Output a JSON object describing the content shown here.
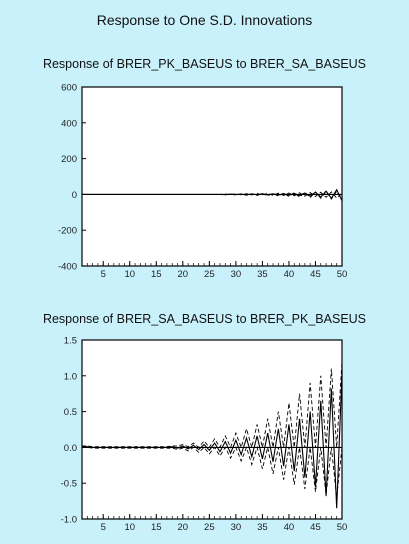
{
  "title": "Response to One S.D. Innovations",
  "chart_data": [
    {
      "type": "line",
      "title": "Response of BRER_PK_BASEUS to BRER_SA_BASEUS",
      "xlabel": "",
      "ylabel": "",
      "xlim": [
        1,
        50
      ],
      "ylim": [
        -400,
        600
      ],
      "x_ticks": [
        "5",
        "10",
        "15",
        "20",
        "25",
        "30",
        "35",
        "40",
        "45",
        "50"
      ],
      "y_ticks": [
        "600",
        "400",
        "200",
        "0",
        "-200",
        "-400"
      ],
      "series": [
        {
          "style": "solid",
          "x": [
            1,
            2,
            3,
            4,
            5,
            6,
            7,
            8,
            9,
            10,
            11,
            12,
            13,
            14,
            15,
            16,
            17,
            18,
            19,
            20,
            21,
            22,
            23,
            24,
            25,
            26,
            27,
            28,
            29,
            30,
            31,
            32,
            33,
            34,
            35,
            36,
            37,
            38,
            39,
            40,
            41,
            42,
            43,
            44,
            45,
            46,
            47,
            48,
            49,
            50
          ],
          "values": [
            0,
            0,
            0,
            0,
            0,
            0,
            0,
            0,
            0,
            0,
            0,
            0,
            0,
            0,
            0,
            0,
            0,
            0,
            0,
            0,
            0,
            0,
            0,
            0,
            0,
            0,
            0,
            -1,
            1,
            -1,
            1,
            -2,
            2,
            -2,
            3,
            -3,
            3,
            -4,
            4,
            -5,
            6,
            -7,
            8,
            -10,
            12,
            -15,
            18,
            -22,
            26,
            -35
          ]
        },
        {
          "style": "dashed",
          "x": [
            1,
            2,
            3,
            4,
            5,
            6,
            7,
            8,
            9,
            10,
            11,
            12,
            13,
            14,
            15,
            16,
            17,
            18,
            19,
            20,
            21,
            22,
            23,
            24,
            25,
            26,
            27,
            28,
            29,
            30,
            31,
            32,
            33,
            34,
            35,
            36,
            37,
            38,
            39,
            40,
            41,
            42,
            43,
            44,
            45,
            46,
            47,
            48,
            49,
            50
          ],
          "values": [
            0,
            0,
            0,
            0,
            0,
            0,
            0,
            0,
            0,
            0,
            0,
            0,
            0,
            0,
            0,
            0,
            0,
            0,
            0,
            0,
            0,
            0,
            0,
            0,
            0,
            0,
            0,
            -3,
            2,
            -4,
            3,
            -5,
            4,
            -6,
            5,
            -8,
            6,
            -10,
            8,
            -12,
            10,
            -15,
            12,
            -18,
            14,
            -22,
            16,
            -26,
            18,
            -32
          ]
        },
        {
          "style": "dashed",
          "x": [
            1,
            2,
            3,
            4,
            5,
            6,
            7,
            8,
            9,
            10,
            11,
            12,
            13,
            14,
            15,
            16,
            17,
            18,
            19,
            20,
            21,
            22,
            23,
            24,
            25,
            26,
            27,
            28,
            29,
            30,
            31,
            32,
            33,
            34,
            35,
            36,
            37,
            38,
            39,
            40,
            41,
            42,
            43,
            44,
            45,
            46,
            47,
            48,
            49,
            50
          ],
          "values": [
            0,
            0,
            0,
            0,
            0,
            0,
            0,
            0,
            0,
            0,
            0,
            0,
            0,
            0,
            0,
            0,
            0,
            0,
            0,
            0,
            0,
            0,
            0,
            0,
            0,
            0,
            0,
            2,
            -1,
            3,
            -2,
            4,
            -3,
            5,
            -4,
            6,
            -5,
            7,
            -6,
            8,
            -8,
            9,
            -10,
            10,
            -12,
            12,
            -16,
            14,
            -20,
            6
          ]
        }
      ]
    },
    {
      "type": "line",
      "title": "Response of BRER_SA_BASEUS to BRER_PK_BASEUS",
      "xlabel": "",
      "ylabel": "",
      "xlim": [
        1,
        50
      ],
      "ylim": [
        -1.0,
        1.5
      ],
      "x_ticks": [
        "5",
        "10",
        "15",
        "20",
        "25",
        "30",
        "35",
        "40",
        "45",
        "50"
      ],
      "y_ticks": [
        "1.5",
        "1.0",
        "0.5",
        "0.0",
        "-0.5",
        "-1.0"
      ],
      "series": [
        {
          "style": "solid",
          "x": [
            1,
            2,
            3,
            4,
            5,
            6,
            7,
            8,
            9,
            10,
            11,
            12,
            13,
            14,
            15,
            16,
            17,
            18,
            19,
            20,
            21,
            22,
            23,
            24,
            25,
            26,
            27,
            28,
            29,
            30,
            31,
            32,
            33,
            34,
            35,
            36,
            37,
            38,
            39,
            40,
            41,
            42,
            43,
            44,
            45,
            46,
            47,
            48,
            49,
            50
          ],
          "values": [
            0.01,
            0.01,
            0.0,
            0.0,
            0.0,
            0.0,
            0.0,
            0.0,
            0.0,
            0.0,
            0.0,
            0.0,
            0.0,
            0.0,
            0.0,
            0.0,
            0.0,
            0.01,
            -0.01,
            0.02,
            -0.02,
            0.03,
            -0.03,
            0.04,
            -0.04,
            0.06,
            -0.06,
            0.08,
            -0.08,
            0.1,
            -0.1,
            0.13,
            -0.13,
            0.16,
            -0.16,
            0.2,
            -0.2,
            0.26,
            -0.26,
            0.32,
            -0.33,
            0.4,
            -0.42,
            0.5,
            -0.55,
            0.65,
            -0.68,
            0.82,
            -0.85,
            1.05
          ]
        },
        {
          "style": "dashed",
          "x": [
            1,
            2,
            3,
            4,
            5,
            6,
            7,
            8,
            9,
            10,
            11,
            12,
            13,
            14,
            15,
            16,
            17,
            18,
            19,
            20,
            21,
            22,
            23,
            24,
            25,
            26,
            27,
            28,
            29,
            30,
            31,
            32,
            33,
            34,
            35,
            36,
            37,
            38,
            39,
            40,
            41,
            42,
            43,
            44,
            45,
            46,
            47,
            48,
            49,
            50
          ],
          "values": [
            0.02,
            0.02,
            0.01,
            0.01,
            0.01,
            0.01,
            0.01,
            0.01,
            0.01,
            0.01,
            0.01,
            0.01,
            0.01,
            0.01,
            0.01,
            0.01,
            0.01,
            0.02,
            0.02,
            0.04,
            0.01,
            0.06,
            0.0,
            0.09,
            0.0,
            0.12,
            0.0,
            0.16,
            0.0,
            0.2,
            0.0,
            0.26,
            0.0,
            0.32,
            0.0,
            0.4,
            0.0,
            0.5,
            0.0,
            0.62,
            0.0,
            0.75,
            0.0,
            0.9,
            0.0,
            1.0,
            0.0,
            1.1,
            0.0,
            1.2
          ]
        },
        {
          "style": "dashed",
          "x": [
            1,
            2,
            3,
            4,
            5,
            6,
            7,
            8,
            9,
            10,
            11,
            12,
            13,
            14,
            15,
            16,
            17,
            18,
            19,
            20,
            21,
            22,
            23,
            24,
            25,
            26,
            27,
            28,
            29,
            30,
            31,
            32,
            33,
            34,
            35,
            36,
            37,
            38,
            39,
            40,
            41,
            42,
            43,
            44,
            45,
            46,
            47,
            48,
            49,
            50
          ],
          "values": [
            0.0,
            0.0,
            -0.01,
            -0.01,
            -0.01,
            -0.01,
            -0.01,
            -0.01,
            -0.01,
            -0.01,
            -0.01,
            -0.01,
            -0.01,
            -0.01,
            -0.01,
            -0.01,
            -0.01,
            -0.01,
            -0.03,
            -0.01,
            -0.05,
            0.0,
            -0.07,
            0.0,
            -0.09,
            0.0,
            -0.12,
            0.0,
            -0.15,
            0.0,
            -0.19,
            0.0,
            -0.24,
            0.0,
            -0.3,
            0.0,
            -0.37,
            0.0,
            -0.45,
            0.0,
            -0.52,
            0.0,
            -0.58,
            0.0,
            -0.62,
            0.0,
            -0.66,
            0.0,
            -0.7,
            0.0
          ]
        }
      ]
    }
  ]
}
